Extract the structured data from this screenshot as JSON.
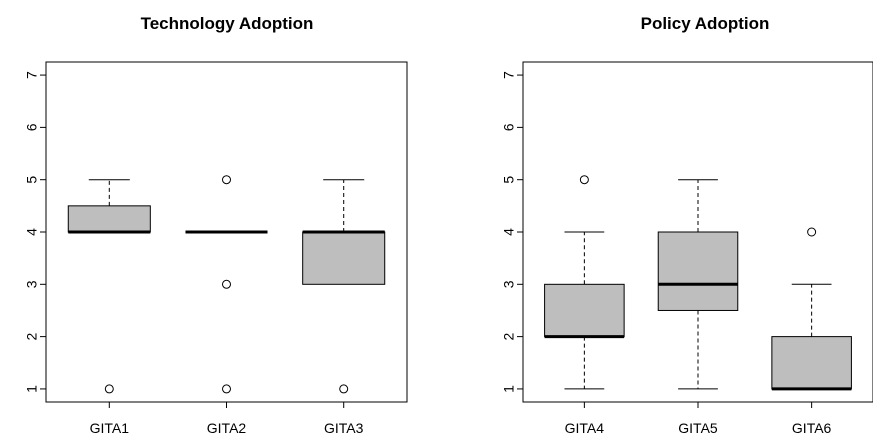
{
  "chart_data": [
    {
      "type": "boxplot",
      "title": "Technology Adoption",
      "ylim": [
        0.75,
        7.25
      ],
      "yticks": [
        1,
        2,
        3,
        4,
        5,
        6,
        7
      ],
      "categories": [
        "GITA1",
        "GITA2",
        "GITA3"
      ],
      "boxes": [
        {
          "name": "GITA1",
          "min": 4,
          "q1": 4,
          "median": 4,
          "q3": 4.5,
          "max": 5,
          "outliers": [
            1
          ]
        },
        {
          "name": "GITA2",
          "min": 4,
          "q1": 4,
          "median": 4,
          "q3": 4,
          "max": 4,
          "outliers": [
            5,
            3,
            1
          ]
        },
        {
          "name": "GITA3",
          "min": 3,
          "q1": 3,
          "median": 4,
          "q3": 4,
          "max": 5,
          "outliers": [
            1
          ]
        }
      ],
      "grid": false,
      "box_fill": "#bebebe"
    },
    {
      "type": "boxplot",
      "title": "Policy Adoption",
      "ylim": [
        0.75,
        7.25
      ],
      "yticks": [
        1,
        2,
        3,
        4,
        5,
        6,
        7
      ],
      "categories": [
        "GITA4",
        "GITA5",
        "GITA6"
      ],
      "boxes": [
        {
          "name": "GITA4",
          "min": 1,
          "q1": 2,
          "median": 2,
          "q3": 3,
          "max": 4,
          "outliers": [
            5
          ]
        },
        {
          "name": "GITA5",
          "min": 1,
          "q1": 2.5,
          "median": 3,
          "q3": 4,
          "max": 5,
          "outliers": []
        },
        {
          "name": "GITA6",
          "min": 1,
          "q1": 1,
          "median": 1,
          "q3": 2,
          "max": 3,
          "outliers": [
            4
          ]
        }
      ],
      "grid": false,
      "box_fill": "#bebebe"
    }
  ]
}
